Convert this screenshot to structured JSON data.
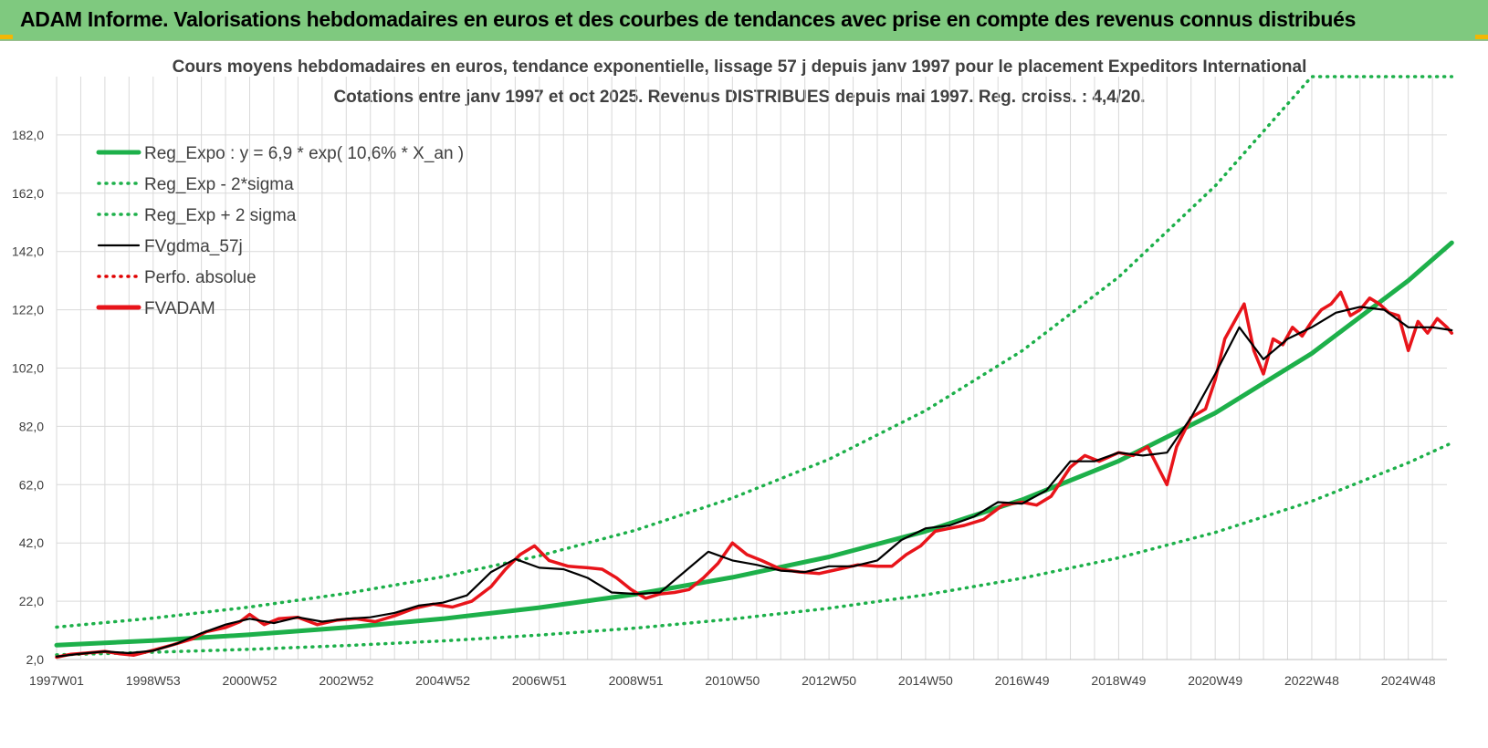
{
  "header": {
    "title": "ADAM Informe. Valorisations hebdomadaires en euros et des courbes de tendances avec prise en compte des revenus connus distribués"
  },
  "colors": {
    "header_bg": "#7fc97f",
    "reg_expo": "#1db04a",
    "band": "#1db04a",
    "gdma": "#000000",
    "perfo": "#e00000",
    "fvadam": "#e8141a",
    "grid": "#d9d9d9",
    "corner_accent": "#f2b705"
  },
  "chart_data": {
    "type": "line",
    "title": "Cours moyens hebdomadaires en euros, tendance exponentielle, lissage 57 j depuis janv 1997 pour le placement Expeditors International",
    "subtitle": "Cotations entre janv 1997 et oct 2025. Revenus DISTRIBUES depuis mai 1997. Reg. croiss. : 4,4/20.",
    "xlabel": "",
    "ylabel": "",
    "x_range": [
      1997.0,
      2025.8
    ],
    "ylim": [
      2.0,
      202.0
    ],
    "y_ticks": [
      2.0,
      22.0,
      42.0,
      62.0,
      82.0,
      102.0,
      122.0,
      142.0,
      162.0,
      182.0
    ],
    "y_tick_labels": [
      "2,0",
      "22,0",
      "42,0",
      "62,0",
      "82,0",
      "102,0",
      "122,0",
      "142,0",
      "162,0",
      "182,0"
    ],
    "x_tick_labels": [
      "1997W01",
      "1998W53",
      "2000W52",
      "2002W52",
      "2004W52",
      "2006W51",
      "2008W51",
      "2010W50",
      "2012W50",
      "2014W50",
      "2016W49",
      "2018W49",
      "2020W49",
      "2022W48",
      "2024W48"
    ],
    "x_tick_years": [
      1997.0,
      1999.0,
      2001.0,
      2003.0,
      2005.0,
      2007.0,
      2009.0,
      2011.0,
      2013.0,
      2015.0,
      2017.0,
      2019.0,
      2021.0,
      2023.0,
      2025.0
    ],
    "grid": true,
    "legend_position": "top-left",
    "legend": [
      {
        "label": "Reg_Expo : y = 6,9 * exp( 10,6% *  X_an )",
        "style": "solid-thick",
        "color": "#1db04a"
      },
      {
        "label": "Reg_Exp - 2*sigma",
        "style": "dotted",
        "color": "#1db04a"
      },
      {
        "label": "Reg_Exp + 2 sigma",
        "style": "dotted",
        "color": "#1db04a"
      },
      {
        "label": "FVgdma_57j",
        "style": "solid",
        "color": "#000000"
      },
      {
        "label": "Perfo. absolue",
        "style": "dotted",
        "color": "#e00000"
      },
      {
        "label": "FVADAM",
        "style": "solid-thick",
        "color": "#e8141a"
      }
    ],
    "series": [
      {
        "name": "Reg_Expo : y = 6,9 * exp( 10,6% *  X_an )",
        "x": [
          1997.0,
          1999.0,
          2001.0,
          2003.0,
          2005.0,
          2007.0,
          2009.0,
          2011.0,
          2013.0,
          2015.0,
          2017.0,
          2019.0,
          2021.0,
          2023.0,
          2025.0,
          2025.9
        ],
        "y": [
          6.9,
          8.5,
          10.5,
          13.0,
          16.0,
          19.8,
          24.4,
          30.2,
          37.2,
          46.0,
          56.8,
          70.1,
          86.6,
          107.0,
          132.0,
          145.0
        ]
      },
      {
        "name": "Reg_Exp - 2*sigma",
        "x": [
          1997.0,
          1999.0,
          2001.0,
          2003.0,
          2005.0,
          2007.0,
          2009.0,
          2011.0,
          2013.0,
          2015.0,
          2017.0,
          2019.0,
          2021.0,
          2023.0,
          2025.0,
          2025.9
        ],
        "y": [
          3.6,
          4.5,
          5.5,
          6.8,
          8.4,
          10.4,
          12.8,
          15.9,
          19.6,
          24.2,
          29.9,
          36.9,
          45.6,
          56.3,
          69.5,
          76.3
        ]
      },
      {
        "name": "Reg_Exp + 2 sigma",
        "x": [
          1997.0,
          1999.0,
          2001.0,
          2003.0,
          2005.0,
          2007.0,
          2009.0,
          2011.0,
          2013.0,
          2015.0,
          2017.0,
          2019.0,
          2021.0,
          2023.0,
          2023.05,
          2025.9
        ],
        "y": [
          13.1,
          16.2,
          20.0,
          24.7,
          30.4,
          37.6,
          46.4,
          57.4,
          70.7,
          87.4,
          107.9,
          133.2,
          164.5,
          202.0,
          202.0,
          202.0
        ]
      },
      {
        "name": "FVgdma_57j",
        "x": [
          1997.0,
          1997.5,
          1998.0,
          1998.5,
          1999.0,
          1999.5,
          2000.0,
          2000.5,
          2001.0,
          2001.5,
          2002.0,
          2002.5,
          2003.0,
          2003.5,
          2004.0,
          2004.5,
          2005.0,
          2005.5,
          2006.0,
          2006.5,
          2007.0,
          2007.5,
          2008.0,
          2008.5,
          2009.0,
          2009.5,
          2010.0,
          2010.5,
          2011.0,
          2011.5,
          2012.0,
          2012.5,
          2013.0,
          2013.5,
          2014.0,
          2014.5,
          2015.0,
          2015.5,
          2016.0,
          2016.5,
          2017.0,
          2017.5,
          2018.0,
          2018.5,
          2019.0,
          2019.5,
          2020.0,
          2020.5,
          2021.0,
          2021.5,
          2022.0,
          2022.5,
          2023.0,
          2023.5,
          2024.0,
          2024.5,
          2025.0,
          2025.5,
          2025.9
        ],
        "y": [
          3.0,
          4.0,
          4.8,
          4.2,
          5.0,
          7.5,
          11.0,
          14.0,
          16.0,
          14.5,
          16.5,
          15.0,
          16.0,
          16.5,
          18.0,
          20.5,
          21.5,
          24.0,
          32.0,
          36.5,
          33.5,
          33.0,
          30.0,
          25.0,
          24.5,
          25.0,
          32.0,
          39.0,
          36.0,
          34.5,
          32.5,
          32.0,
          34.0,
          34.0,
          36.0,
          43.0,
          47.0,
          48.0,
          51.0,
          56.0,
          55.5,
          60.0,
          70.0,
          70.0,
          73.0,
          72.0,
          73.0,
          85.0,
          100.0,
          116.0,
          105.0,
          112.0,
          116.0,
          121.0,
          123.0,
          122.0,
          116.0,
          116.0,
          115.0
        ]
      },
      {
        "name": "FVADAM",
        "x": [
          1997.0,
          1997.3,
          1997.6,
          1998.0,
          1998.3,
          1998.6,
          1999.0,
          1999.4,
          1999.8,
          2000.1,
          2000.5,
          2000.8,
          2001.0,
          2001.3,
          2001.6,
          2002.0,
          2002.4,
          2002.8,
          2003.2,
          2003.6,
          2004.0,
          2004.4,
          2004.8,
          2005.2,
          2005.6,
          2006.0,
          2006.3,
          2006.6,
          2006.9,
          2007.2,
          2007.6,
          2008.0,
          2008.3,
          2008.6,
          2008.9,
          2009.2,
          2009.5,
          2009.8,
          2010.1,
          2010.4,
          2010.7,
          2011.0,
          2011.3,
          2011.6,
          2012.0,
          2012.4,
          2012.8,
          2013.2,
          2013.6,
          2014.0,
          2014.3,
          2014.6,
          2014.9,
          2015.2,
          2015.5,
          2015.8,
          2016.2,
          2016.6,
          2017.0,
          2017.3,
          2017.6,
          2018.0,
          2018.3,
          2018.6,
          2019.0,
          2019.3,
          2019.6,
          2020.0,
          2020.2,
          2020.5,
          2020.8,
          2021.0,
          2021.2,
          2021.4,
          2021.6,
          2021.8,
          2022.0,
          2022.2,
          2022.4,
          2022.6,
          2022.8,
          2023.0,
          2023.2,
          2023.4,
          2023.6,
          2023.8,
          2024.0,
          2024.2,
          2024.4,
          2024.6,
          2024.8,
          2025.0,
          2025.2,
          2025.4,
          2025.6,
          2025.8,
          2025.9
        ],
        "y": [
          2.8,
          3.8,
          4.2,
          4.8,
          4.0,
          3.5,
          5.2,
          7.0,
          9.0,
          11.5,
          13.0,
          15.0,
          17.5,
          14.0,
          16.0,
          16.5,
          14.0,
          15.5,
          16.0,
          15.0,
          17.0,
          19.5,
          21.0,
          20.0,
          22.0,
          27.0,
          33.0,
          38.0,
          41.0,
          36.0,
          34.0,
          33.5,
          33.0,
          30.0,
          26.0,
          23.0,
          24.5,
          25.0,
          26.0,
          30.0,
          35.0,
          42.0,
          38.0,
          36.0,
          33.0,
          32.0,
          31.5,
          33.0,
          34.5,
          34.0,
          34.0,
          38.0,
          41.0,
          46.0,
          47.0,
          48.0,
          50.0,
          55.0,
          56.0,
          55.0,
          58.0,
          68.0,
          72.0,
          70.0,
          73.0,
          72.0,
          75.0,
          62.0,
          75.0,
          85.0,
          88.0,
          98.0,
          112.0,
          118.0,
          124.0,
          108.0,
          100.0,
          112.0,
          110.0,
          116.0,
          113.0,
          118.0,
          122.0,
          124.0,
          128.0,
          120.0,
          122.0,
          126.0,
          124.0,
          121.0,
          120.0,
          108.0,
          118.0,
          114.0,
          119.0,
          116.0,
          114.0
        ]
      }
    ]
  }
}
